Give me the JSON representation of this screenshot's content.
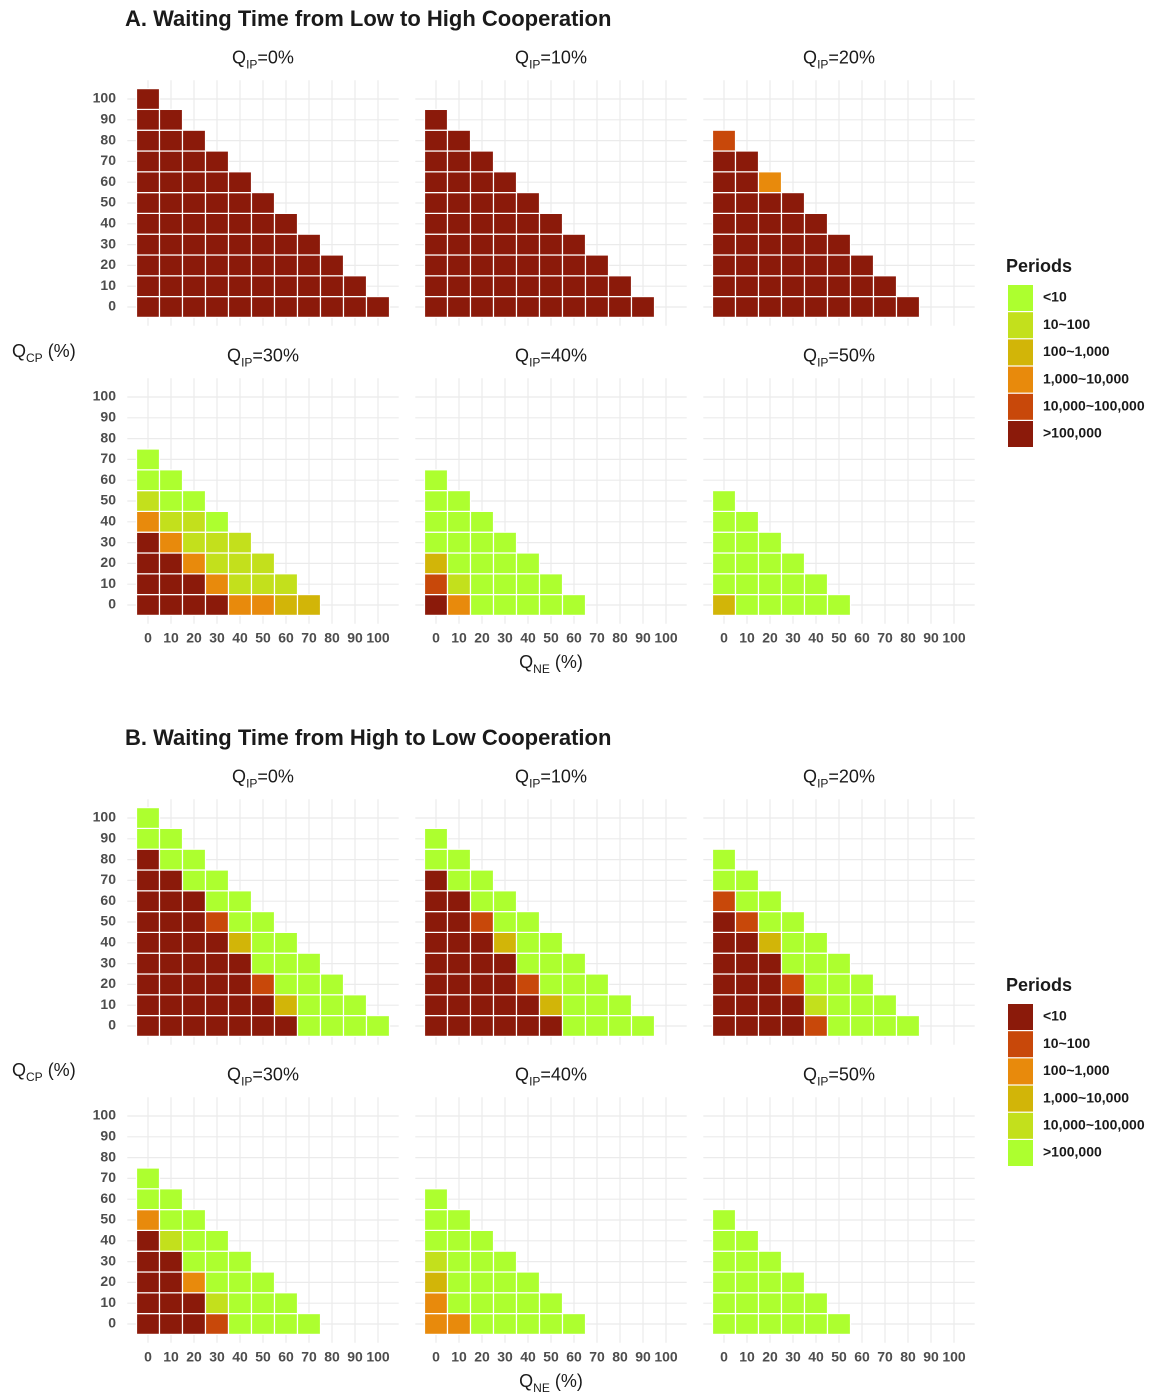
{
  "chart_data": [
    {
      "type": "heatmap",
      "title": "A. Waiting Time from Low to High Cooperation",
      "facet_var": {
        "base": "Q",
        "sub": "IP"
      },
      "x_label": {
        "base": "Q",
        "sub": "NE",
        "rest": " (%)"
      },
      "y_label": {
        "base": "Q",
        "sub": "CP",
        "rest": " (%)"
      },
      "xlim": [
        -9,
        109
      ],
      "ylim": [
        -9,
        109
      ],
      "xticks": [
        0,
        10,
        20,
        30,
        40,
        50,
        60,
        70,
        80,
        90,
        100
      ],
      "yticks": [
        0,
        10,
        20,
        30,
        40,
        50,
        60,
        70,
        80,
        90,
        100
      ],
      "grid": true,
      "legend": {
        "title": "Periods",
        "position": "right",
        "labels": [
          "<10",
          "10~100",
          "100~1,000",
          "1,000~10,000",
          "10,000~100,000",
          ">100,000"
        ],
        "colors": [
          "#adff2f",
          "#c3e01c",
          "#d2b508",
          "#e88a0c",
          "#c8480a",
          "#8b1a0a"
        ]
      },
      "facets": [
        {
          "label": "=0%",
          "z": [
            [
              5,
              5,
              5,
              5,
              5,
              5,
              5,
              5,
              5,
              5,
              5
            ],
            [
              5,
              5,
              5,
              5,
              5,
              5,
              5,
              5,
              5,
              5
            ],
            [
              5,
              5,
              5,
              5,
              5,
              5,
              5,
              5,
              5
            ],
            [
              5,
              5,
              5,
              5,
              5,
              5,
              5,
              5
            ],
            [
              5,
              5,
              5,
              5,
              5,
              5,
              5
            ],
            [
              5,
              5,
              5,
              5,
              5,
              5
            ],
            [
              5,
              5,
              5,
              5,
              5
            ],
            [
              5,
              5,
              5,
              5
            ],
            [
              5,
              5,
              5
            ],
            [
              5,
              5
            ],
            [
              5
            ]
          ]
        },
        {
          "label": "=10%",
          "z": [
            [
              5,
              5,
              5,
              5,
              5,
              5,
              5,
              5,
              5,
              5
            ],
            [
              5,
              5,
              5,
              5,
              5,
              5,
              5,
              5,
              5
            ],
            [
              5,
              5,
              5,
              5,
              5,
              5,
              5,
              5
            ],
            [
              5,
              5,
              5,
              5,
              5,
              5,
              5
            ],
            [
              5,
              5,
              5,
              5,
              5,
              5
            ],
            [
              5,
              5,
              5,
              5,
              5
            ],
            [
              5,
              5,
              5,
              5
            ],
            [
              5,
              5,
              5
            ],
            [
              5,
              5
            ],
            [
              5
            ]
          ]
        },
        {
          "label": "=20%",
          "z": [
            [
              5,
              5,
              5,
              5,
              5,
              5,
              5,
              5,
              4
            ],
            [
              5,
              5,
              5,
              5,
              5,
              5,
              5,
              5
            ],
            [
              5,
              5,
              5,
              5,
              5,
              5,
              3
            ],
            [
              5,
              5,
              5,
              5,
              5,
              5
            ],
            [
              5,
              5,
              5,
              5,
              5
            ],
            [
              5,
              5,
              5,
              5
            ],
            [
              5,
              5,
              5
            ],
            [
              5,
              5
            ],
            [
              5
            ]
          ]
        },
        {
          "label": "=30%",
          "z": [
            [
              5,
              5,
              5,
              5,
              3,
              1,
              0,
              0
            ],
            [
              5,
              5,
              5,
              3,
              1,
              0,
              0
            ],
            [
              5,
              5,
              3,
              1,
              1,
              0
            ],
            [
              5,
              3,
              1,
              1,
              0
            ],
            [
              3,
              1,
              1,
              1
            ],
            [
              3,
              1,
              1
            ],
            [
              2,
              1
            ],
            [
              2
            ]
          ]
        },
        {
          "label": "=40%",
          "z": [
            [
              5,
              4,
              2,
              0,
              0,
              0,
              0
            ],
            [
              3,
              1,
              0,
              0,
              0,
              0
            ],
            [
              0,
              0,
              0,
              0,
              0
            ],
            [
              0,
              0,
              0,
              0
            ],
            [
              0,
              0,
              0
            ],
            [
              0,
              0
            ],
            [
              0
            ]
          ]
        },
        {
          "label": "=50%",
          "z": [
            [
              2,
              0,
              0,
              0,
              0,
              0
            ],
            [
              0,
              0,
              0,
              0,
              0
            ],
            [
              0,
              0,
              0,
              0
            ],
            [
              0,
              0,
              0
            ],
            [
              0,
              0
            ],
            [
              0
            ]
          ]
        }
      ]
    },
    {
      "type": "heatmap",
      "title": "B. Waiting Time from High to Low Cooperation",
      "facet_var": {
        "base": "Q",
        "sub": "IP"
      },
      "x_label": {
        "base": "Q",
        "sub": "NE",
        "rest": " (%)"
      },
      "y_label": {
        "base": "Q",
        "sub": "CP",
        "rest": " (%)"
      },
      "xlim": [
        -9,
        109
      ],
      "ylim": [
        -9,
        109
      ],
      "xticks": [
        0,
        10,
        20,
        30,
        40,
        50,
        60,
        70,
        80,
        90,
        100
      ],
      "yticks": [
        0,
        10,
        20,
        30,
        40,
        50,
        60,
        70,
        80,
        90,
        100
      ],
      "grid": true,
      "legend": {
        "title": "Periods",
        "position": "right",
        "labels": [
          "<10",
          "10~100",
          "100~1,000",
          "1,000~10,000",
          "10,000~100,000",
          ">100,000"
        ],
        "colors": [
          "#8b1a0a",
          "#c8480a",
          "#e88a0c",
          "#d2b508",
          "#c3e01c",
          "#adff2f"
        ]
      },
      "facets": [
        {
          "label": "=0%",
          "z": [
            [
              0,
              0,
              0,
              0,
              0,
              0,
              0,
              0,
              0,
              5,
              5
            ],
            [
              0,
              0,
              0,
              0,
              0,
              0,
              0,
              0,
              5,
              5
            ],
            [
              0,
              0,
              0,
              0,
              0,
              0,
              0,
              5,
              5
            ],
            [
              0,
              0,
              0,
              0,
              0,
              1,
              5,
              5
            ],
            [
              0,
              0,
              0,
              0,
              3,
              5,
              5
            ],
            [
              0,
              0,
              1,
              5,
              5,
              5
            ],
            [
              0,
              3,
              5,
              5,
              5
            ],
            [
              5,
              5,
              5,
              5
            ],
            [
              5,
              5,
              5
            ],
            [
              5,
              5
            ],
            [
              5
            ]
          ]
        },
        {
          "label": "=10%",
          "z": [
            [
              0,
              0,
              0,
              0,
              0,
              0,
              0,
              0,
              5,
              5
            ],
            [
              0,
              0,
              0,
              0,
              0,
              0,
              0,
              5,
              5
            ],
            [
              0,
              0,
              0,
              0,
              0,
              1,
              5,
              5
            ],
            [
              0,
              0,
              0,
              0,
              3,
              5,
              5
            ],
            [
              0,
              0,
              1,
              5,
              5,
              5
            ],
            [
              0,
              3,
              5,
              5,
              5
            ],
            [
              5,
              5,
              5,
              5
            ],
            [
              5,
              5,
              5
            ],
            [
              5,
              5
            ],
            [
              5
            ]
          ]
        },
        {
          "label": "=20%",
          "z": [
            [
              0,
              0,
              0,
              0,
              0,
              0,
              1,
              5,
              5
            ],
            [
              0,
              0,
              0,
              0,
              0,
              1,
              5,
              5
            ],
            [
              0,
              0,
              0,
              0,
              3,
              5,
              5
            ],
            [
              0,
              0,
              1,
              5,
              5,
              5
            ],
            [
              1,
              4,
              5,
              5,
              5
            ],
            [
              5,
              5,
              5,
              5
            ],
            [
              5,
              5,
              5
            ],
            [
              5,
              5
            ],
            [
              5
            ]
          ]
        },
        {
          "label": "=30%",
          "z": [
            [
              0,
              0,
              0,
              0,
              0,
              2,
              5,
              5
            ],
            [
              0,
              0,
              0,
              0,
              4,
              5,
              5
            ],
            [
              0,
              0,
              2,
              5,
              5,
              5
            ],
            [
              1,
              4,
              5,
              5,
              5
            ],
            [
              5,
              5,
              5,
              5
            ],
            [
              5,
              5,
              5
            ],
            [
              5,
              5
            ],
            [
              5
            ]
          ]
        },
        {
          "label": "=40%",
          "z": [
            [
              2,
              2,
              3,
              4,
              5,
              5,
              5
            ],
            [
              2,
              5,
              5,
              5,
              5,
              5
            ],
            [
              5,
              5,
              5,
              5,
              5
            ],
            [
              5,
              5,
              5,
              5
            ],
            [
              5,
              5,
              5
            ],
            [
              5,
              5
            ],
            [
              5
            ]
          ]
        },
        {
          "label": "=50%",
          "z": [
            [
              5,
              5,
              5,
              5,
              5,
              5
            ],
            [
              5,
              5,
              5,
              5,
              5
            ],
            [
              5,
              5,
              5,
              5
            ],
            [
              5,
              5,
              5
            ],
            [
              5,
              5
            ],
            [
              5
            ]
          ]
        }
      ]
    }
  ]
}
